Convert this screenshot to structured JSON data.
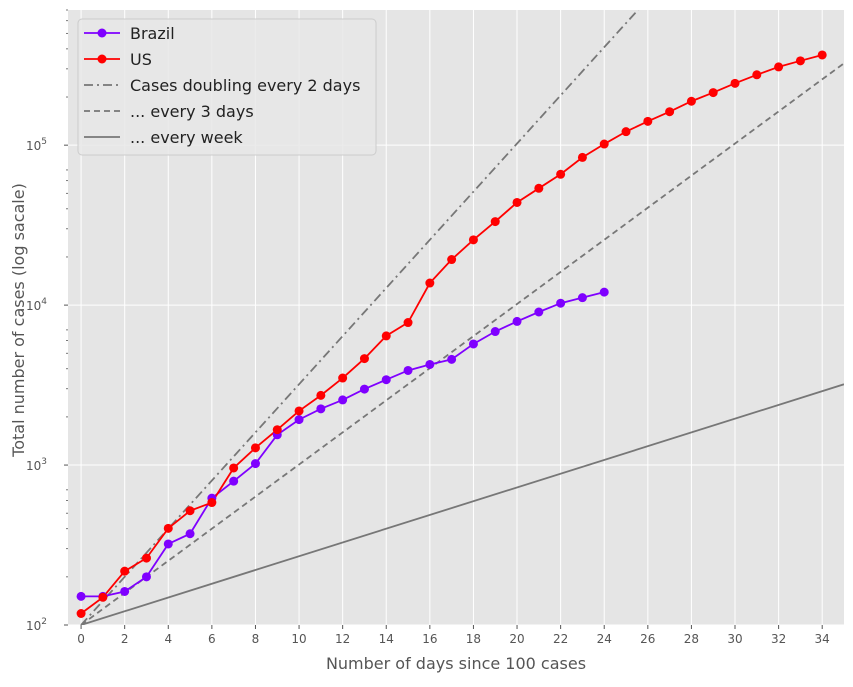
{
  "chart_data": {
    "type": "line",
    "xlabel": "Number of days since 100 cases",
    "ylabel": "Total number of cases  (log sacale)",
    "xlim": [
      -0.6,
      35
    ],
    "ylim": [
      100,
      700000
    ],
    "yscale": "log",
    "grid": true,
    "legend": "top-left",
    "x_ticks": [
      0,
      2,
      4,
      6,
      8,
      10,
      12,
      14,
      16,
      18,
      20,
      22,
      24,
      26,
      28,
      30,
      32,
      34
    ],
    "x_tick_labels": [
      "0",
      "2",
      "4",
      "6",
      "8",
      "10",
      "12",
      "14",
      "16",
      "18",
      "20",
      "22",
      "24",
      "26",
      "28",
      "30",
      "32",
      "34"
    ],
    "y_ticks": [
      {
        "value": 100,
        "base": "10",
        "exp": "2"
      },
      {
        "value": 1000,
        "base": "10",
        "exp": "3"
      },
      {
        "value": 10000,
        "base": "10",
        "exp": "4"
      },
      {
        "value": 100000,
        "base": "10",
        "exp": "5"
      }
    ],
    "series": [
      {
        "name": "Brazil",
        "color": "#7f00ff",
        "marker": "circle",
        "style": "solid",
        "x": [
          0,
          1,
          2,
          3,
          4,
          5,
          6,
          7,
          8,
          9,
          10,
          11,
          12,
          13,
          14,
          15,
          16,
          17,
          18,
          19,
          20,
          21,
          22,
          23,
          24
        ],
        "y": [
          151,
          151,
          162,
          200,
          321,
          372,
          621,
          793,
          1021,
          1546,
          1924,
          2247,
          2554,
          2985,
          3417,
          3904,
          4256,
          4579,
          5717,
          6836,
          7910,
          9056,
          10278,
          11130,
          12056
        ]
      },
      {
        "name": "US",
        "color": "#ff0000",
        "marker": "circle",
        "style": "solid",
        "x": [
          0,
          1,
          2,
          3,
          4,
          5,
          6,
          7,
          8,
          9,
          10,
          11,
          12,
          13,
          14,
          15,
          16,
          17,
          18,
          19,
          20,
          21,
          22,
          23,
          24,
          25,
          26,
          27,
          28,
          29,
          30,
          31,
          32,
          33,
          34
        ],
        "y": [
          118,
          149,
          217,
          262,
          402,
          518,
          583,
          959,
          1281,
          1663,
          2179,
          2727,
          3499,
          4632,
          6421,
          7783,
          13747,
          19273,
          25600,
          33276,
          43843,
          53736,
          65778,
          83836,
          101657,
          121478,
          140886,
          161807,
          188172,
          213242,
          243622,
          275367,
          308650,
          336802,
          366317
        ]
      },
      {
        "name": "Cases doubling every 2 days",
        "color": "#777777",
        "style": "dashdot",
        "start": 100,
        "doubling_days": 2
      },
      {
        "name": "... every 3 days",
        "color": "#777777",
        "style": "dashed",
        "start": 100,
        "doubling_days": 3
      },
      {
        "name": "... every week",
        "color": "#777777",
        "style": "solid",
        "start": 100,
        "doubling_days": 7
      }
    ]
  }
}
